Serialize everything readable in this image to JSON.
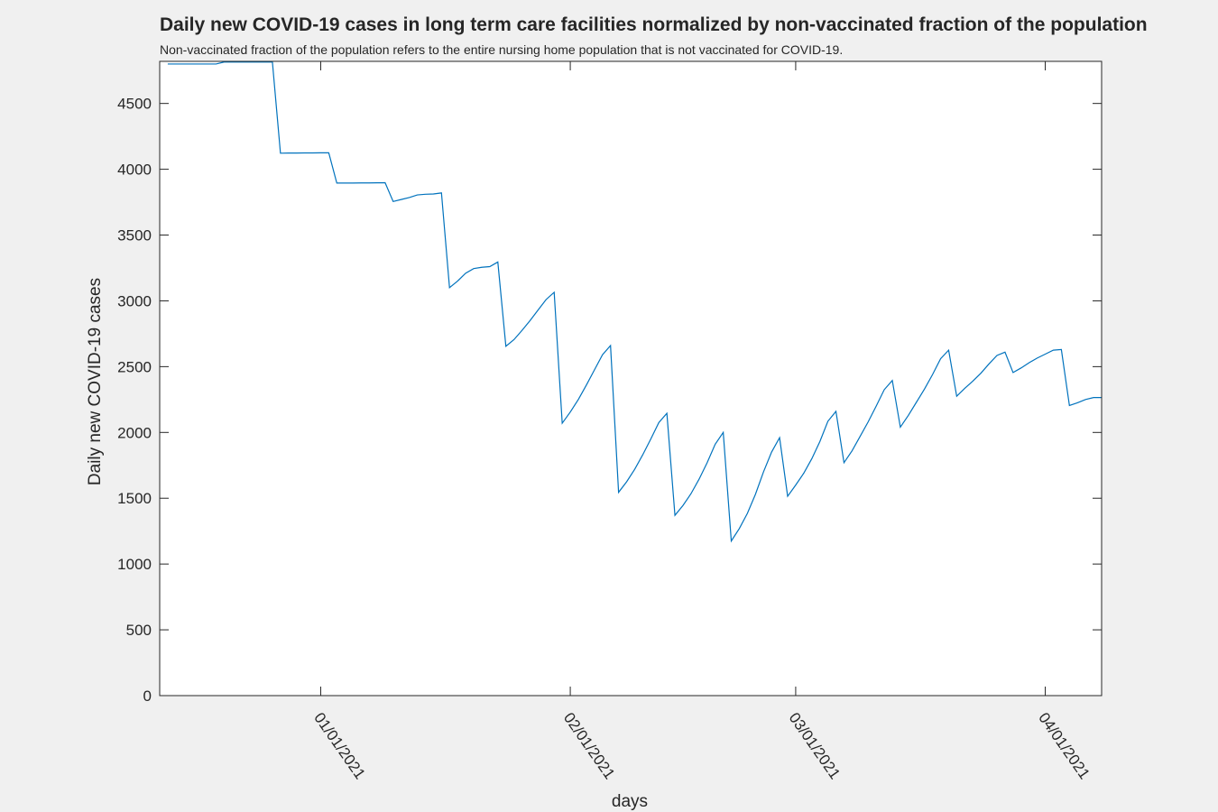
{
  "chart_data": {
    "type": "line",
    "title": "Daily new COVID-19 cases in long term care facilities normalized by non-vaccinated fraction of the population",
    "subtitle": "Non-vaccinated fraction of the population refers to the entire nursing home population that is not vaccinated for COVID-19.",
    "x_label": "days",
    "y_label": "Daily new COVID-19 cases",
    "color": "#0072bd",
    "x": [
      "2020-12-13",
      "2020-12-14",
      "2020-12-15",
      "2020-12-16",
      "2020-12-17",
      "2020-12-18",
      "2020-12-19",
      "2020-12-20",
      "2020-12-21",
      "2020-12-22",
      "2020-12-23",
      "2020-12-24",
      "2020-12-25",
      "2020-12-26",
      "2020-12-27",
      "2020-12-28",
      "2020-12-29",
      "2020-12-30",
      "2020-12-31",
      "2021-01-01",
      "2021-01-02",
      "2021-01-03",
      "2021-01-04",
      "2021-01-05",
      "2021-01-06",
      "2021-01-07",
      "2021-01-08",
      "2021-01-09",
      "2021-01-10",
      "2021-01-11",
      "2021-01-12",
      "2021-01-13",
      "2021-01-14",
      "2021-01-15",
      "2021-01-16",
      "2021-01-17",
      "2021-01-18",
      "2021-01-19",
      "2021-01-20",
      "2021-01-21",
      "2021-01-22",
      "2021-01-23",
      "2021-01-24",
      "2021-01-25",
      "2021-01-26",
      "2021-01-27",
      "2021-01-28",
      "2021-01-29",
      "2021-01-30",
      "2021-01-31",
      "2021-02-01",
      "2021-02-02",
      "2021-02-03",
      "2021-02-04",
      "2021-02-05",
      "2021-02-06",
      "2021-02-07",
      "2021-02-08",
      "2021-02-09",
      "2021-02-10",
      "2021-02-11",
      "2021-02-12",
      "2021-02-13",
      "2021-02-14",
      "2021-02-15",
      "2021-02-16",
      "2021-02-17",
      "2021-02-18",
      "2021-02-19",
      "2021-02-20",
      "2021-02-21",
      "2021-02-22",
      "2021-02-23",
      "2021-02-24",
      "2021-02-25",
      "2021-02-26",
      "2021-02-27",
      "2021-02-28",
      "2021-03-01",
      "2021-03-02",
      "2021-03-03",
      "2021-03-04",
      "2021-03-05",
      "2021-03-06",
      "2021-03-07",
      "2021-03-08",
      "2021-03-09",
      "2021-03-10",
      "2021-03-11",
      "2021-03-12",
      "2021-03-13",
      "2021-03-14",
      "2021-03-15",
      "2021-03-16",
      "2021-03-17",
      "2021-03-18",
      "2021-03-19",
      "2021-03-20",
      "2021-03-21",
      "2021-03-22",
      "2021-03-23",
      "2021-03-24",
      "2021-03-25",
      "2021-03-26",
      "2021-03-27",
      "2021-03-28",
      "2021-03-29",
      "2021-03-30",
      "2021-03-31",
      "2021-04-01",
      "2021-04-02",
      "2021-04-03",
      "2021-04-04",
      "2021-04-05",
      "2021-04-06",
      "2021-04-07",
      "2021-04-08"
    ],
    "values": [
      4800,
      4800,
      4800,
      4800,
      4800,
      4800,
      4800,
      4815,
      4815,
      4815,
      4815,
      4815,
      4815,
      4815,
      4122,
      4123,
      4123,
      4124,
      4124,
      4125,
      4125,
      3895,
      3895,
      3895,
      3896,
      3896,
      3897,
      3898,
      3755,
      3770,
      3785,
      3805,
      3810,
      3812,
      3820,
      3100,
      3150,
      3210,
      3245,
      3255,
      3260,
      3295,
      2655,
      2705,
      2775,
      2850,
      2930,
      3010,
      3065,
      2070,
      2155,
      2250,
      2360,
      2475,
      2590,
      2660,
      1545,
      1625,
      1720,
      1830,
      1950,
      2075,
      2145,
      1370,
      1445,
      1535,
      1645,
      1770,
      1910,
      2000,
      1175,
      1270,
      1385,
      1530,
      1700,
      1850,
      1960,
      1515,
      1600,
      1690,
      1800,
      1930,
      2085,
      2160,
      1770,
      1860,
      1970,
      2080,
      2200,
      2325,
      2395,
      2040,
      2130,
      2230,
      2330,
      2440,
      2560,
      2625,
      2275,
      2335,
      2390,
      2450,
      2520,
      2585,
      2610,
      2455,
      2490,
      2530,
      2565,
      2595,
      2625,
      2630,
      2205,
      2225,
      2250,
      2265,
      2265
    ],
    "xlim": [
      "2020-12-12",
      "2021-04-08"
    ],
    "xticks": [
      {
        "value": "2021-01-01",
        "label": "01/01/2021"
      },
      {
        "value": "2021-02-01",
        "label": "02/01/2021"
      },
      {
        "value": "2021-03-01",
        "label": "03/01/2021"
      },
      {
        "value": "2021-04-01",
        "label": "04/01/2021"
      }
    ],
    "ylim": [
      0,
      4820
    ],
    "yticks": [
      0,
      500,
      1000,
      1500,
      2000,
      2500,
      3000,
      3500,
      4000,
      4500
    ]
  }
}
